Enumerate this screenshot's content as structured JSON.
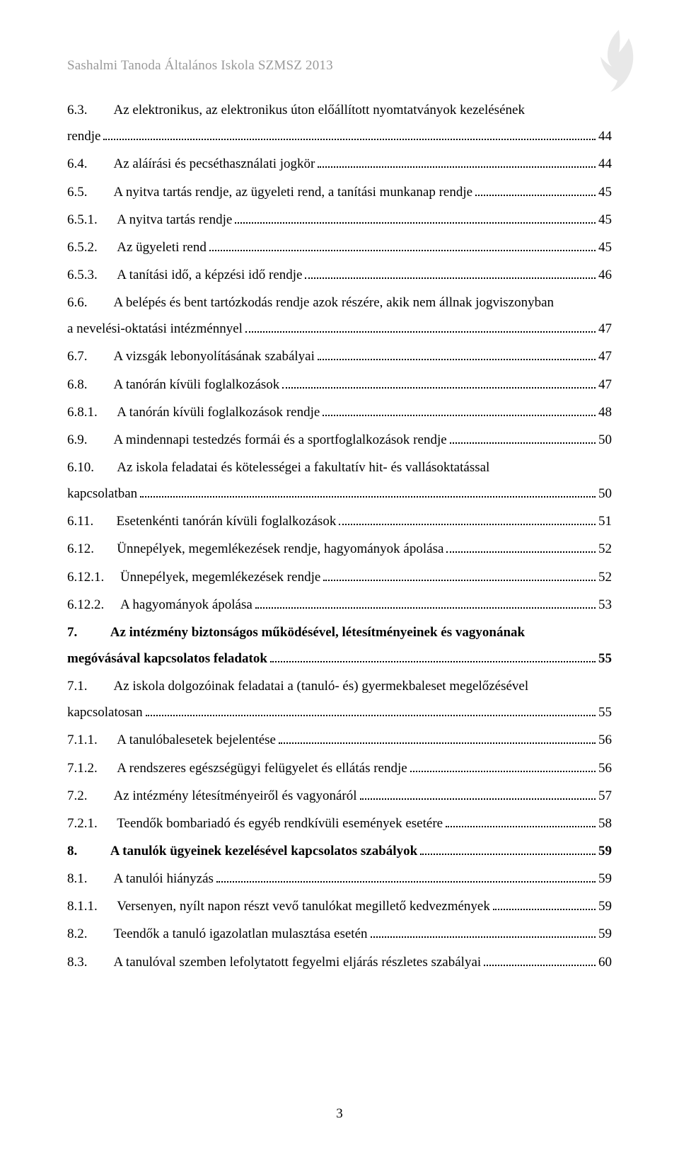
{
  "header": "Sashalmi Tanoda Általános Iskola SZMSZ  2013",
  "page_number": "3",
  "entries": [
    {
      "num": "6.3.",
      "title_a": "Az elektronikus, az elektronikus úton előállított nyomtatványok kezelésének",
      "title_b": "rendje",
      "page": "44",
      "bold": false
    },
    {
      "num": "6.4.",
      "title": "Az aláírási és pecséthasználati jogkör",
      "page": "44",
      "bold": false
    },
    {
      "num": "6.5.",
      "title": "A nyitva tartás rendje, az ügyeleti rend, a tanítási munkanap rendje",
      "page": "45",
      "bold": false
    },
    {
      "num": "6.5.1.",
      "title": "A nyitva tartás rendje",
      "page": "45",
      "bold": false
    },
    {
      "num": "6.5.2.",
      "title": "Az ügyeleti rend",
      "page": "45",
      "bold": false
    },
    {
      "num": "6.5.3.",
      "title": "A tanítási idő, a képzési idő rendje",
      "page": "46",
      "bold": false
    },
    {
      "num": "6.6.",
      "title_a": "A belépés és bent tartózkodás rendje azok részére, akik nem állnak jogviszonyban",
      "title_b": "a nevelési-oktatási intézménnyel",
      "page": "47",
      "bold": false
    },
    {
      "num": "6.7.",
      "title": "A vizsgák lebonyolításának szabályai",
      "page": "47",
      "bold": false
    },
    {
      "num": "6.8.",
      "title": "A tanórán kívüli foglalkozások",
      "page": "47",
      "bold": false
    },
    {
      "num": "6.8.1.",
      "title": "A tanórán kívüli foglalkozások rendje",
      "page": "48",
      "bold": false
    },
    {
      "num": "6.9.",
      "title": "A mindennapi testedzés formái és a sportfoglalkozások rendje",
      "page": "50",
      "bold": false
    },
    {
      "num": "6.10.",
      "title_a": "Az iskola feladatai és kötelességei a fakultatív hit- és vallásoktatással",
      "title_b": "kapcsolatban",
      "page": "50",
      "bold": false
    },
    {
      "num": "6.11.",
      "title": "Esetenkénti tanórán kívüli foglalkozások",
      "page": "51",
      "bold": false
    },
    {
      "num": "6.12.",
      "title": "Ünnepélyek, megemlékezések rendje, hagyományok ápolása",
      "page": "52",
      "bold": false
    },
    {
      "num": "6.12.1.",
      "title": "Ünnepélyek, megemlékezések rendje",
      "page": "52",
      "bold": false
    },
    {
      "num": "6.12.2.",
      "title": "A hagyományok ápolása",
      "page": "53",
      "bold": false
    },
    {
      "num": "7.",
      "title_a": "Az intézmény biztonságos működésével, létesítményeinek és vagyonának",
      "title_b": "megóvásával kapcsolatos feladatok",
      "page": "55",
      "bold": true
    },
    {
      "num": "7.1.",
      "title_a": "Az iskola dolgozóinak feladatai a (tanuló- és) gyermekbaleset megelőzésével",
      "title_b": "kapcsolatosan",
      "page": "55",
      "bold": false
    },
    {
      "num": "7.1.1.",
      "title": "A tanulóbalesetek bejelentése",
      "page": "56",
      "bold": false
    },
    {
      "num": "7.1.2.",
      "title": "A rendszeres egészségügyi felügyelet és ellátás rendje",
      "page": "56",
      "bold": false
    },
    {
      "num": "7.2.",
      "title": "Az intézmény létesítményeiről és vagyonáról",
      "page": "57",
      "bold": false
    },
    {
      "num": "7.2.1.",
      "title": "Teendők bombariadó és egyéb rendkívüli események esetére",
      "page": "58",
      "bold": false
    },
    {
      "num": "8.",
      "title": "A tanulók ügyeinek kezelésével kapcsolatos szabályok",
      "page": "59",
      "bold": true
    },
    {
      "num": "8.1.",
      "title": "A tanulói hiányzás",
      "page": "59",
      "bold": false
    },
    {
      "num": "8.1.1.",
      "title": "Versenyen, nyílt napon részt vevő tanulókat megillető kedvezmények",
      "page": "59",
      "bold": false
    },
    {
      "num": "8.2.",
      "title": "Teendők a tanuló igazolatlan mulasztása esetén",
      "page": "59",
      "bold": false
    },
    {
      "num": "8.3.",
      "title": "A tanulóval szemben lefolytatott fegyelmi eljárás részletes szabályai",
      "page": "60",
      "bold": false
    }
  ]
}
